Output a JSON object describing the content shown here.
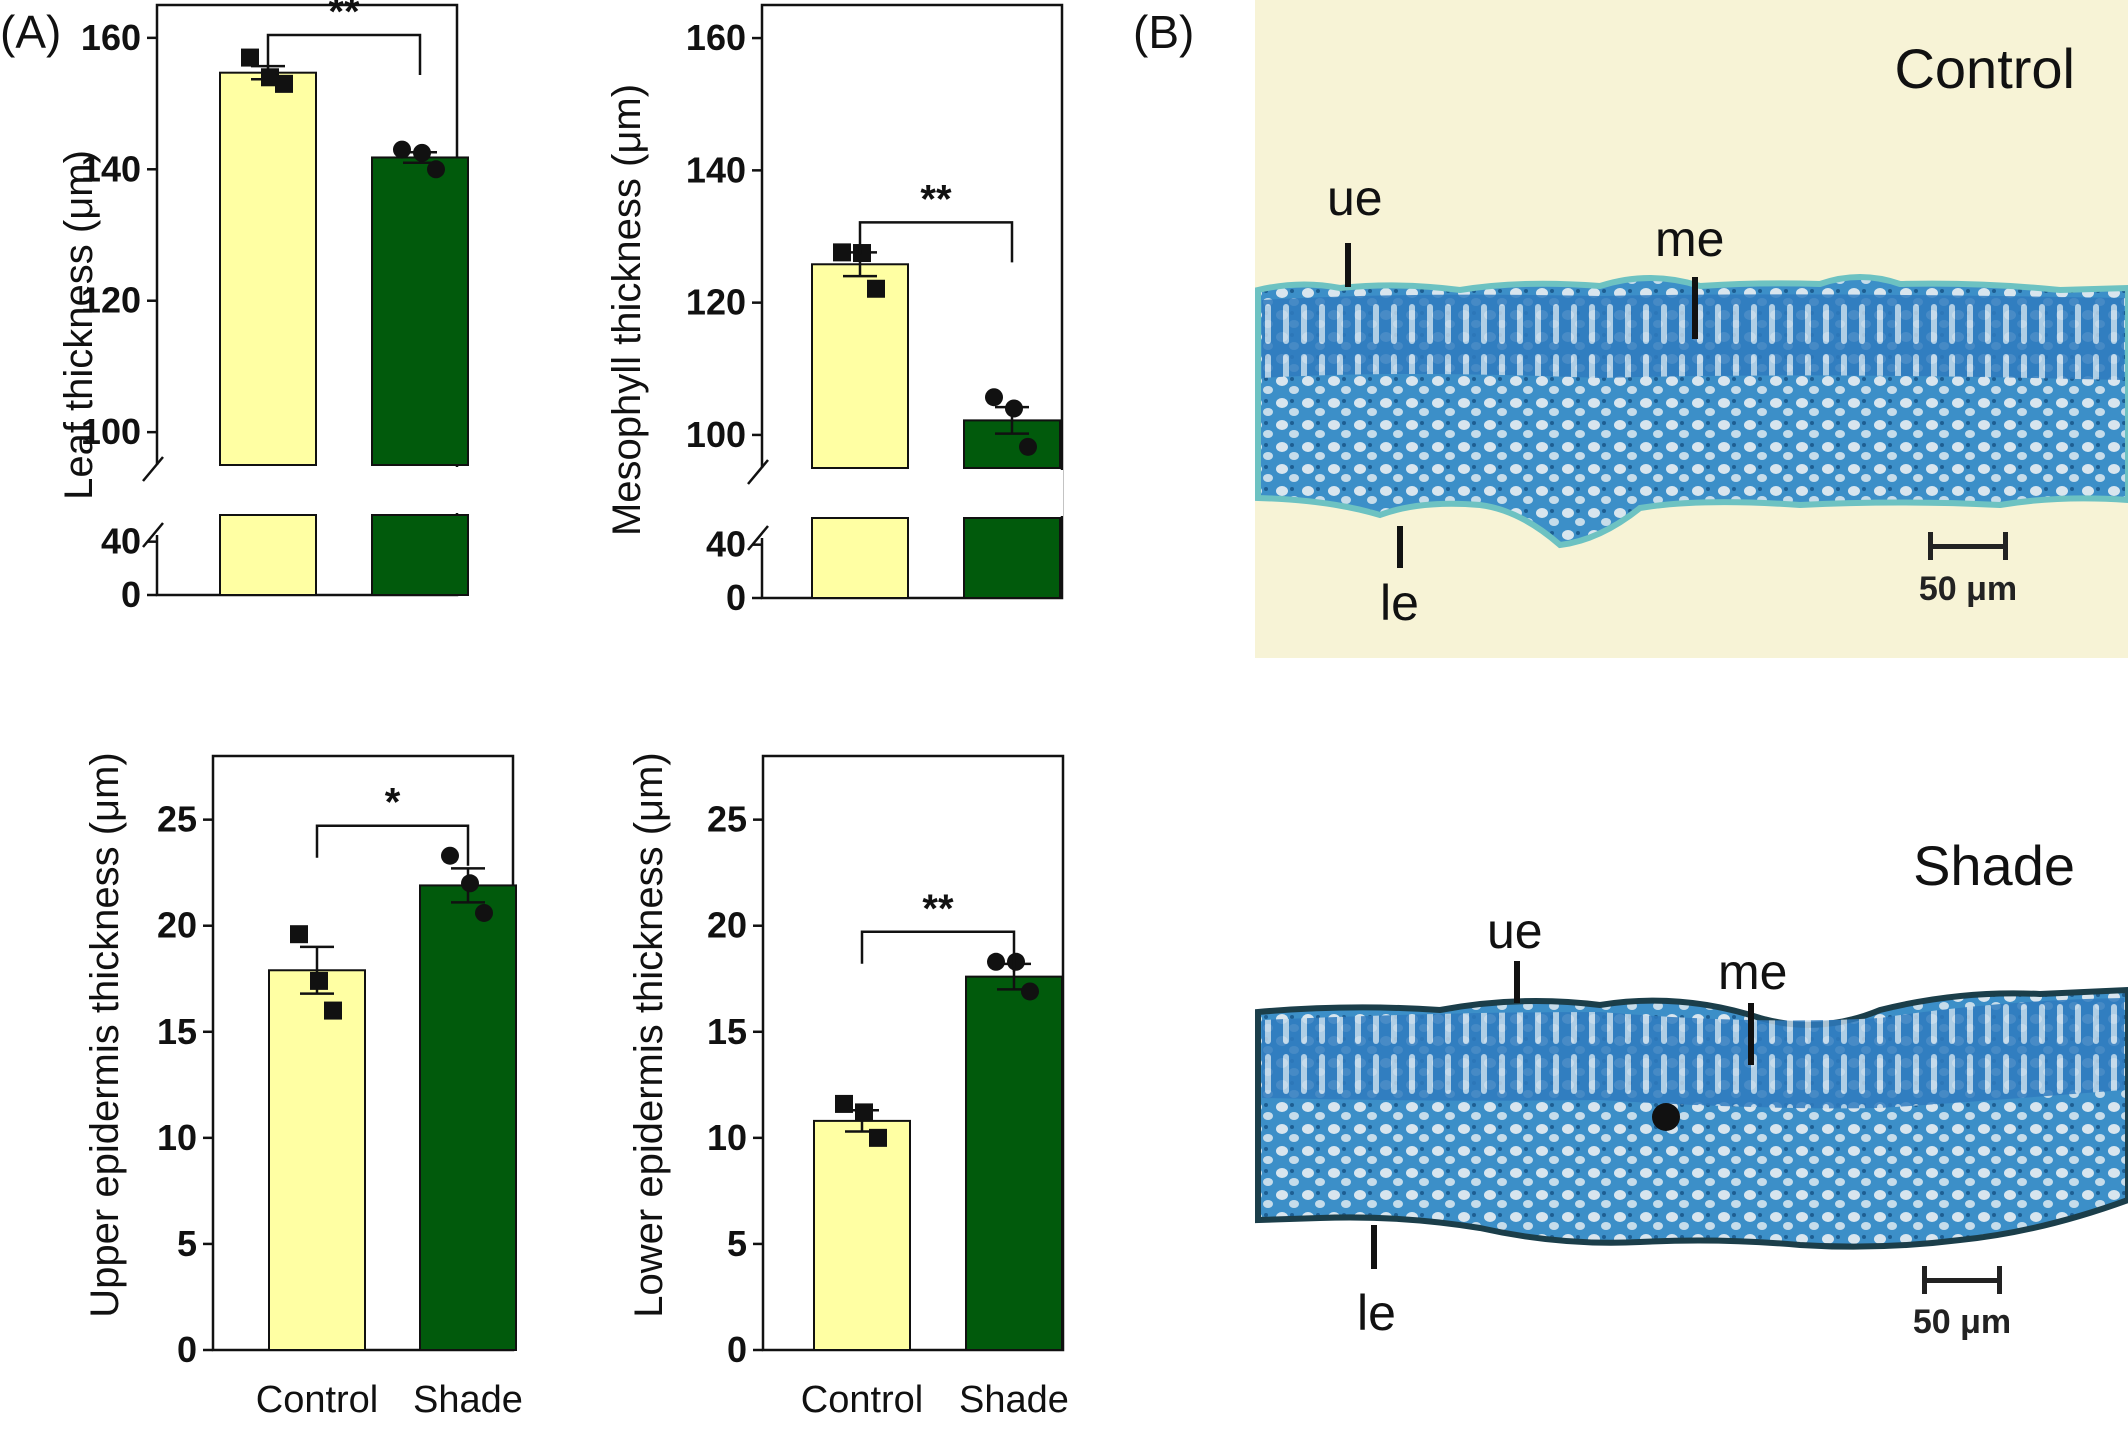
{
  "panel_labels": {
    "a": "(A)",
    "b": "(B)"
  },
  "colors": {
    "control_bar": "#FFFFA3",
    "shade_bar": "#015A0C",
    "micro_bg": "#F7F3D6",
    "tissue": "#3C8FC8",
    "tissue_dark": "#1D5E92",
    "tissue_edge": "#6DC2C2"
  },
  "chart_data": [
    {
      "type": "bar",
      "title": "",
      "ylabel": "Leaf thickness (μm)",
      "categories": [
        "Control",
        "Shade"
      ],
      "values": [
        154.7,
        141.8
      ],
      "sem": [
        1.0,
        0.8
      ],
      "points": [
        [
          157,
          154,
          153
        ],
        [
          143,
          142.5,
          140
        ]
      ],
      "markers": [
        "square",
        "circle"
      ],
      "y_axis_break": {
        "lower": [
          0,
          45
        ],
        "upper": [
          95,
          165
        ]
      },
      "yticks": [
        "0",
        "40",
        "100",
        "120",
        "140",
        "160"
      ],
      "significance": "**"
    },
    {
      "type": "bar",
      "title": "",
      "ylabel": "Mesophyll thickness (μm)",
      "categories": [
        "Control",
        "Shade"
      ],
      "values": [
        125.8,
        102.2
      ],
      "sem": [
        1.8,
        2.0
      ],
      "points": [
        [
          127.6,
          127.5,
          122.1
        ],
        [
          105.7,
          104,
          98.2
        ]
      ],
      "markers": [
        "square",
        "circle"
      ],
      "y_axis_break": {
        "lower": [
          0,
          45
        ],
        "upper": [
          95,
          165
        ]
      },
      "yticks": [
        "0",
        "40",
        "100",
        "120",
        "140",
        "160"
      ],
      "significance": "**"
    },
    {
      "type": "bar",
      "title": "",
      "ylabel": "Upper epidermis thickness (μm)",
      "categories": [
        "Control",
        "Shade"
      ],
      "values": [
        17.9,
        21.9
      ],
      "sem": [
        1.1,
        0.8
      ],
      "points": [
        [
          19.6,
          17.4,
          16.0
        ],
        [
          23.3,
          22.0,
          20.6
        ]
      ],
      "markers": [
        "square",
        "circle"
      ],
      "ylim": [
        0,
        28
      ],
      "yticks": [
        "0",
        "5",
        "10",
        "15",
        "20",
        "25"
      ],
      "significance": "*"
    },
    {
      "type": "bar",
      "title": "",
      "ylabel": "Lower epidermis thickness (μm)",
      "categories": [
        "Control",
        "Shade"
      ],
      "values": [
        10.8,
        17.6
      ],
      "sem": [
        0.5,
        0.6
      ],
      "points": [
        [
          11.6,
          11.2,
          10.0
        ],
        [
          18.3,
          18.3,
          16.9
        ]
      ],
      "markers": [
        "square",
        "circle"
      ],
      "ylim": [
        0,
        28
      ],
      "yticks": [
        "0",
        "5",
        "10",
        "15",
        "20",
        "25"
      ],
      "significance": "**"
    }
  ],
  "micrographs": [
    {
      "condition": "Control",
      "labels": [
        "ue",
        "me",
        "le"
      ],
      "scale_bar": "50 μm"
    },
    {
      "condition": "Shade",
      "labels": [
        "ue",
        "me",
        "le"
      ],
      "scale_bar": "50 μm"
    }
  ]
}
